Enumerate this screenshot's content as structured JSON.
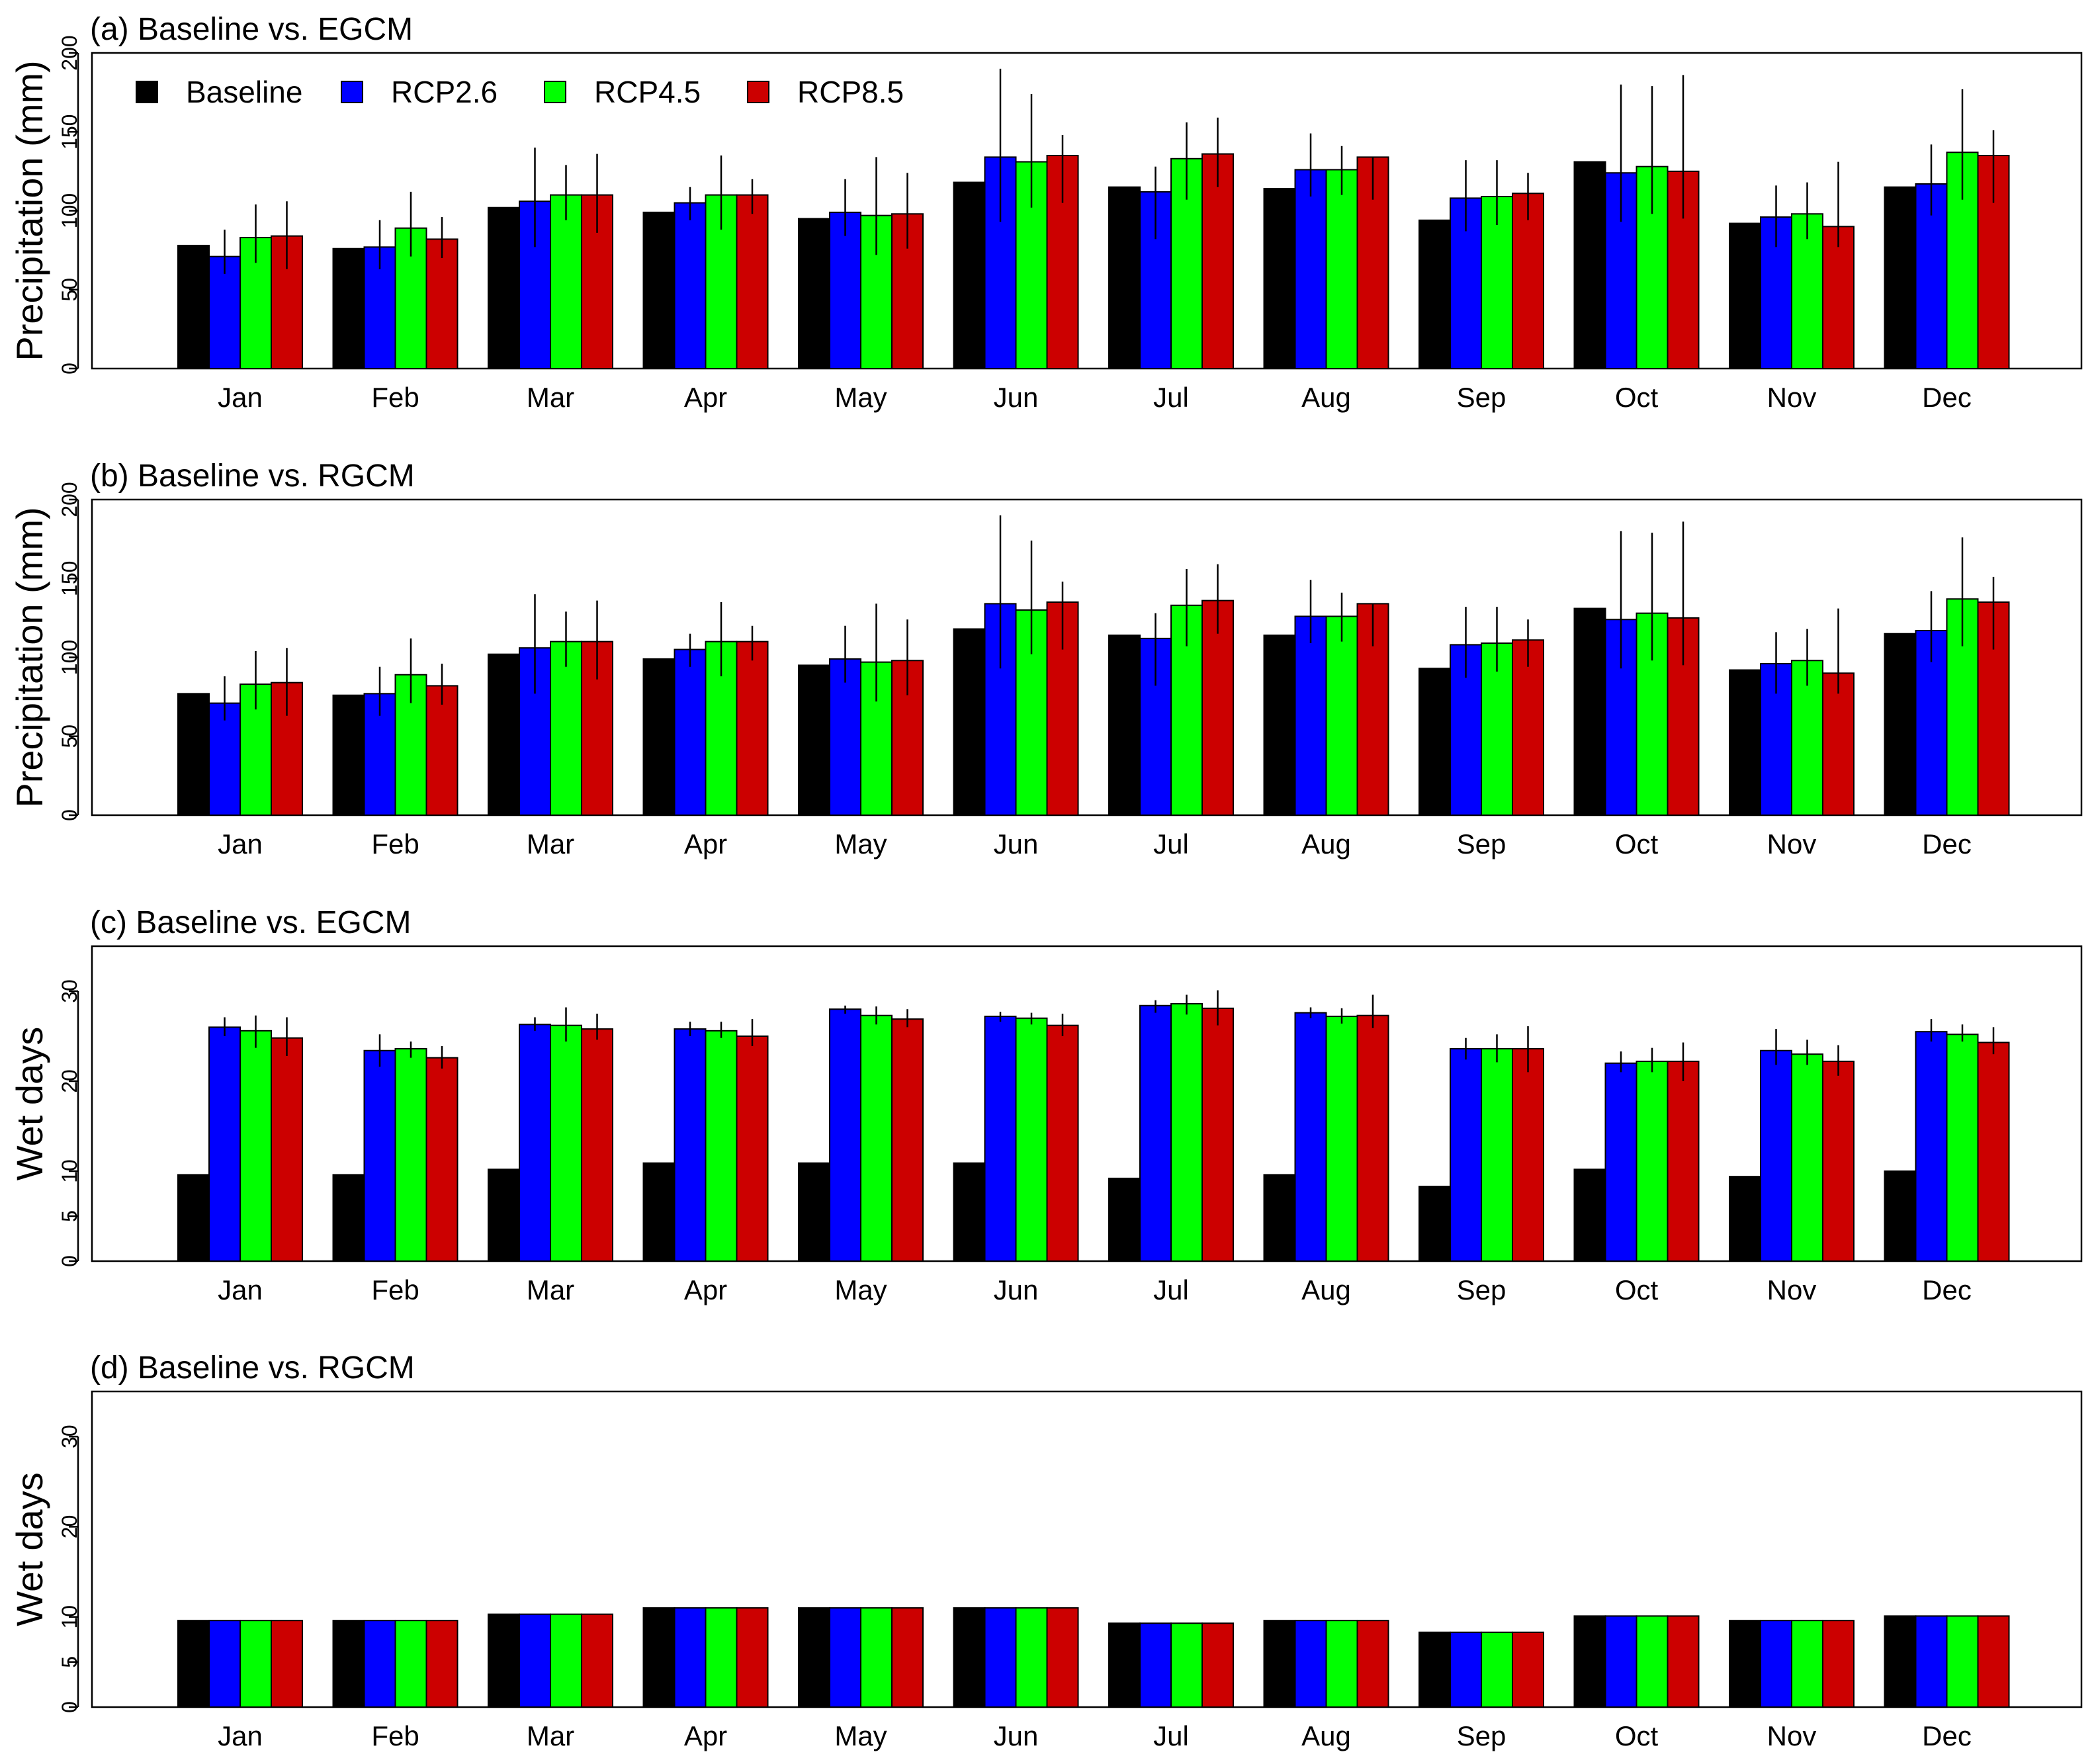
{
  "categories": [
    "Jan",
    "Feb",
    "Mar",
    "Apr",
    "May",
    "Jun",
    "Jul",
    "Aug",
    "Sep",
    "Oct",
    "Nov",
    "Dec"
  ],
  "legend": [
    {
      "name": "Baseline",
      "color": "#000000"
    },
    {
      "name": "RCP2.6",
      "color": "#0000ff"
    },
    {
      "name": "RCP4.5",
      "color": "#00ff00"
    },
    {
      "name": "RCP8.5",
      "color": "#cc0000"
    }
  ],
  "chart_data": [
    {
      "type": "bar",
      "title": "(a) Baseline vs. EGCM",
      "ylabel": "Precipitation (mm)",
      "ylim": [
        0,
        200
      ],
      "yticks": [
        0,
        50,
        100,
        150,
        200
      ],
      "legend_position": "top-left",
      "categories": [
        "Jan",
        "Feb",
        "Mar",
        "Apr",
        "May",
        "Jun",
        "Jul",
        "Aug",
        "Sep",
        "Oct",
        "Nov",
        "Dec"
      ],
      "series": [
        {
          "name": "Baseline",
          "values": [
            78,
            76,
            102,
            99,
            95,
            118,
            115,
            114,
            94,
            131,
            92,
            115
          ]
        },
        {
          "name": "RCP2.6",
          "values": [
            71,
            77,
            106,
            105,
            99,
            134,
            112,
            126,
            108,
            124,
            96,
            117
          ],
          "error": [
            [
              60,
              88
            ],
            [
              63,
              94
            ],
            [
              77,
              140
            ],
            [
              94,
              115
            ],
            [
              84,
              120
            ],
            [
              93,
              190
            ],
            [
              82,
              128
            ],
            [
              109,
              149
            ],
            [
              87,
              132
            ],
            [
              93,
              180
            ],
            [
              77,
              116
            ],
            [
              97,
              142
            ]
          ]
        },
        {
          "name": "RCP4.5",
          "values": [
            83,
            89,
            110,
            110,
            97,
            131,
            133,
            126,
            109,
            128,
            98,
            137
          ],
          "error": [
            [
              67,
              104
            ],
            [
              71,
              112
            ],
            [
              94,
              129
            ],
            [
              88,
              135
            ],
            [
              72,
              134
            ],
            [
              102,
              174
            ],
            [
              107,
              156
            ],
            [
              110,
              141
            ],
            [
              91,
              132
            ],
            [
              98,
              179
            ],
            [
              82,
              118
            ],
            [
              107,
              177
            ]
          ]
        },
        {
          "name": "RCP8.5",
          "values": [
            84,
            82,
            110,
            110,
            98,
            135,
            136,
            134,
            111,
            125,
            90,
            135
          ],
          "error": [
            [
              63,
              106
            ],
            [
              70,
              96
            ],
            [
              86,
              136
            ],
            [
              98,
              120
            ],
            [
              76,
              124
            ],
            [
              105,
              148
            ],
            [
              115,
              159
            ],
            [
              107,
              134
            ],
            [
              94,
              124
            ],
            [
              95,
              186
            ],
            [
              77,
              131
            ],
            [
              105,
              151
            ]
          ]
        }
      ]
    },
    {
      "type": "bar",
      "title": "(b) Baseline vs. RGCM",
      "ylabel": "Precipitation (mm)",
      "ylim": [
        0,
        200
      ],
      "yticks": [
        0,
        50,
        100,
        150,
        200
      ],
      "categories": [
        "Jan",
        "Feb",
        "Mar",
        "Apr",
        "May",
        "Jun",
        "Jul",
        "Aug",
        "Sep",
        "Oct",
        "Nov",
        "Dec"
      ],
      "series": [
        {
          "name": "Baseline",
          "values": [
            77,
            76,
            102,
            99,
            95,
            118,
            114,
            114,
            93,
            131,
            92,
            115
          ]
        },
        {
          "name": "RCP2.6",
          "values": [
            71,
            77,
            106,
            105,
            99,
            134,
            112,
            126,
            108,
            124,
            96,
            117
          ],
          "error": [
            [
              60,
              88
            ],
            [
              63,
              94
            ],
            [
              77,
              140
            ],
            [
              94,
              115
            ],
            [
              84,
              120
            ],
            [
              93,
              190
            ],
            [
              82,
              128
            ],
            [
              109,
              149
            ],
            [
              87,
              132
            ],
            [
              93,
              180
            ],
            [
              77,
              116
            ],
            [
              97,
              142
            ]
          ]
        },
        {
          "name": "RCP4.5",
          "values": [
            83,
            89,
            110,
            110,
            97,
            130,
            133,
            126,
            109,
            128,
            98,
            137
          ],
          "error": [
            [
              67,
              104
            ],
            [
              71,
              112
            ],
            [
              94,
              129
            ],
            [
              88,
              135
            ],
            [
              72,
              134
            ],
            [
              102,
              174
            ],
            [
              107,
              156
            ],
            [
              110,
              141
            ],
            [
              91,
              132
            ],
            [
              98,
              179
            ],
            [
              82,
              118
            ],
            [
              107,
              176
            ]
          ]
        },
        {
          "name": "RCP8.5",
          "values": [
            84,
            82,
            110,
            110,
            98,
            135,
            136,
            134,
            111,
            125,
            90,
            135
          ],
          "error": [
            [
              63,
              106
            ],
            [
              70,
              96
            ],
            [
              86,
              136
            ],
            [
              98,
              120
            ],
            [
              76,
              124
            ],
            [
              105,
              148
            ],
            [
              115,
              159
            ],
            [
              107,
              134
            ],
            [
              94,
              124
            ],
            [
              95,
              186
            ],
            [
              77,
              131
            ],
            [
              105,
              151
            ]
          ]
        }
      ]
    },
    {
      "type": "bar",
      "title": "(c) Baseline vs. EGCM",
      "ylabel": "Wet days",
      "ylim": [
        0,
        35
      ],
      "yticks": [
        0,
        5,
        10,
        20,
        30
      ],
      "categories": [
        "Jan",
        "Feb",
        "Mar",
        "Apr",
        "May",
        "Jun",
        "Jul",
        "Aug",
        "Sep",
        "Oct",
        "Nov",
        "Dec"
      ],
      "series": [
        {
          "name": "Baseline",
          "values": [
            9.6,
            9.6,
            10.2,
            10.9,
            10.9,
            10.9,
            9.2,
            9.6,
            8.3,
            10.2,
            9.4,
            10.0
          ]
        },
        {
          "name": "RCP2.6",
          "values": [
            26.0,
            23.4,
            26.3,
            25.8,
            28.0,
            27.2,
            28.4,
            27.6,
            23.6,
            22.0,
            23.4,
            25.5
          ],
          "error": [
            [
              25.0,
              27.1
            ],
            [
              21.6,
              25.2
            ],
            [
              25.6,
              27.1
            ],
            [
              25.0,
              26.6
            ],
            [
              27.5,
              28.4
            ],
            [
              26.6,
              27.7
            ],
            [
              27.6,
              29.0
            ],
            [
              27.0,
              28.2
            ],
            [
              22.4,
              24.8
            ],
            [
              21.0,
              23.3
            ],
            [
              21.8,
              25.8
            ],
            [
              24.4,
              26.9
            ]
          ]
        },
        {
          "name": "RCP4.5",
          "values": [
            25.6,
            23.6,
            26.2,
            25.6,
            27.3,
            27.0,
            28.6,
            27.2,
            23.6,
            22.2,
            23.0,
            25.2
          ],
          "error": [
            [
              23.7,
              27.3
            ],
            [
              22.6,
              24.4
            ],
            [
              24.4,
              28.2
            ],
            [
              24.8,
              26.6
            ],
            [
              26.3,
              28.3
            ],
            [
              26.3,
              27.6
            ],
            [
              27.4,
              29.6
            ],
            [
              26.4,
              28.1
            ],
            [
              22.1,
              25.2
            ],
            [
              21.0,
              23.7
            ],
            [
              21.8,
              24.6
            ],
            [
              24.4,
              26.3
            ]
          ]
        },
        {
          "name": "RCP8.5",
          "values": [
            24.8,
            22.6,
            25.8,
            25.0,
            26.9,
            26.2,
            28.1,
            27.3,
            23.6,
            22.2,
            22.2,
            24.3
          ],
          "error": [
            [
              22.8,
              27.1
            ],
            [
              21.4,
              23.9
            ],
            [
              24.6,
              27.5
            ],
            [
              23.9,
              26.9
            ],
            [
              26.0,
              28.0
            ],
            [
              25.0,
              27.5
            ],
            [
              26.2,
              30.1
            ],
            [
              25.9,
              29.6
            ],
            [
              21.0,
              26.1
            ],
            [
              20.0,
              24.3
            ],
            [
              20.6,
              24.0
            ],
            [
              23.0,
              26.0
            ]
          ]
        }
      ]
    },
    {
      "type": "bar",
      "title": "(d) Baseline vs. RGCM",
      "ylabel": "Wet days",
      "ylim": [
        0,
        35
      ],
      "yticks": [
        0,
        5,
        10,
        20,
        30
      ],
      "categories": [
        "Jan",
        "Feb",
        "Mar",
        "Apr",
        "May",
        "Jun",
        "Jul",
        "Aug",
        "Sep",
        "Oct",
        "Nov",
        "Dec"
      ],
      "series": [
        {
          "name": "Baseline",
          "values": [
            9.6,
            9.6,
            10.3,
            11.0,
            11.0,
            11.0,
            9.3,
            9.6,
            8.3,
            10.1,
            9.6,
            10.1
          ]
        },
        {
          "name": "RCP2.6",
          "values": [
            9.6,
            9.6,
            10.3,
            11.0,
            11.0,
            11.0,
            9.3,
            9.6,
            8.3,
            10.1,
            9.6,
            10.1
          ]
        },
        {
          "name": "RCP4.5",
          "values": [
            9.6,
            9.6,
            10.3,
            11.0,
            11.0,
            11.0,
            9.3,
            9.6,
            8.3,
            10.1,
            9.6,
            10.1
          ]
        },
        {
          "name": "RCP8.5",
          "values": [
            9.6,
            9.6,
            10.3,
            11.0,
            11.0,
            11.0,
            9.3,
            9.6,
            8.3,
            10.1,
            9.6,
            10.1
          ]
        }
      ]
    }
  ]
}
